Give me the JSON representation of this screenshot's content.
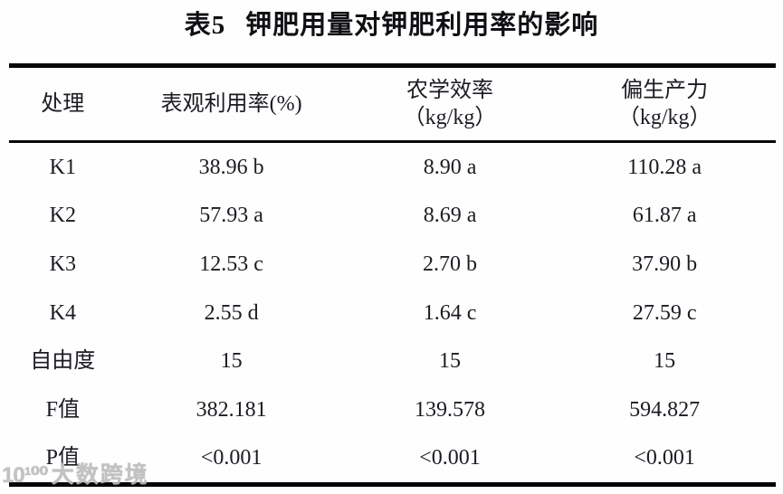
{
  "title": {
    "prefix": "表5",
    "text": "钾肥用量对钾肥利用率的影响"
  },
  "table": {
    "columns": [
      {
        "label": "处理",
        "unit": ""
      },
      {
        "label": "表观利用率(%)",
        "unit": ""
      },
      {
        "label": "农学效率",
        "unit": "（kg/kg）"
      },
      {
        "label": "偏生产力",
        "unit": "（kg/kg）"
      }
    ],
    "rows": [
      {
        "cells": [
          "K1",
          "38.96 b",
          "8.90 a",
          "110.28 a"
        ]
      },
      {
        "cells": [
          "K2",
          "57.93 a",
          "8.69 a",
          "61.87 a"
        ]
      },
      {
        "cells": [
          "K3",
          "12.53 c",
          "2.70 b",
          "37.90 b"
        ]
      },
      {
        "cells": [
          "K4",
          "2.55 d",
          "1.64 c",
          "27.59 c"
        ]
      },
      {
        "cells": [
          "自由度",
          "15",
          "15",
          "15"
        ]
      },
      {
        "cells": [
          "F值",
          "382.181",
          "139.578",
          "594.827"
        ]
      },
      {
        "cells": [
          "P值",
          "<0.001",
          "<0.001",
          "<0.001"
        ]
      }
    ]
  },
  "watermark": {
    "logo": "10¹⁰⁰",
    "text": "大数跨境"
  },
  "colors": {
    "text": "#1b1b22",
    "rule": "#050505",
    "watermark": "#bcbcbc",
    "background": "#fefefe"
  }
}
